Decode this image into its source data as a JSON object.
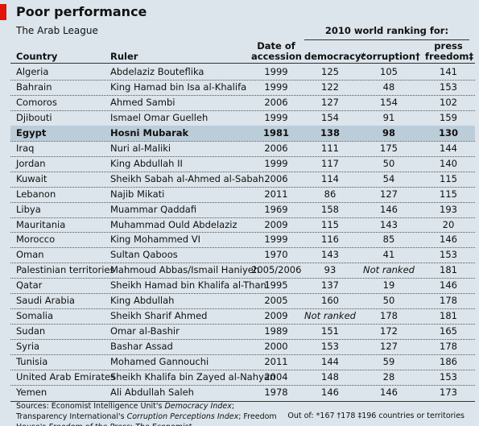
{
  "header": {
    "title": "Poor performance",
    "subtitle": "The Arab League",
    "group_label": "2010 world ranking for:"
  },
  "table": {
    "columns": [
      "Country",
      "Ruler",
      "Date of accession",
      "democracy*",
      "corruption†",
      "press freedom‡"
    ],
    "highlighted_row": 4,
    "rows": [
      [
        "Algeria",
        "Abdelaziz Bouteflika",
        "1999",
        "125",
        "105",
        "141"
      ],
      [
        "Bahrain",
        "King Hamad bin Isa al-Khalifa",
        "1999",
        "122",
        "48",
        "153"
      ],
      [
        "Comoros",
        "Ahmed Sambi",
        "2006",
        "127",
        "154",
        "102"
      ],
      [
        "Djibouti",
        "Ismael Omar Guelleh",
        "1999",
        "154",
        "91",
        "159"
      ],
      [
        "Egypt",
        "Hosni Mubarak",
        "1981",
        "138",
        "98",
        "130"
      ],
      [
        "Iraq",
        "Nuri al-Maliki",
        "2006",
        "111",
        "175",
        "144"
      ],
      [
        "Jordan",
        "King Abdullah II",
        "1999",
        "117",
        "50",
        "140"
      ],
      [
        "Kuwait",
        "Sheikh Sabah al-Ahmed al-Sabah",
        "2006",
        "114",
        "54",
        "115"
      ],
      [
        "Lebanon",
        "Najib Mikati",
        "2011",
        "86",
        "127",
        "115"
      ],
      [
        "Libya",
        "Muammar Qaddafi",
        "1969",
        "158",
        "146",
        "193"
      ],
      [
        "Mauritania",
        "Muhammad Ould Abdelaziz",
        "2009",
        "115",
        "143",
        "20"
      ],
      [
        "Morocco",
        "King Mohammed VI",
        "1999",
        "116",
        "85",
        "146"
      ],
      [
        "Oman",
        "Sultan Qaboos",
        "1970",
        "143",
        "41",
        "153"
      ],
      [
        "Palestinian territories",
        "Mahmoud Abbas/Ismail Haniyeh",
        "2005/2006",
        "93",
        "Not ranked",
        "181"
      ],
      [
        "Qatar",
        "Sheikh Hamad bin Khalifa al-Thani",
        "1995",
        "137",
        "19",
        "146"
      ],
      [
        "Saudi Arabia",
        "King Abdullah",
        "2005",
        "160",
        "50",
        "178"
      ],
      [
        "Somalia",
        "Sheikh Sharif Ahmed",
        "2009",
        "Not ranked",
        "178",
        "181"
      ],
      [
        "Sudan",
        "Omar al-Bashir",
        "1989",
        "151",
        "172",
        "165"
      ],
      [
        "Syria",
        "Bashar Assad",
        "2000",
        "153",
        "127",
        "178"
      ],
      [
        "Tunisia",
        "Mohamed Gannouchi",
        "2011",
        "144",
        "59",
        "186"
      ],
      [
        "United Arab Emirates",
        "Sheikh Khalifa bin Zayed al-Nahyan",
        "2004",
        "148",
        "28",
        "153"
      ],
      [
        "Yemen",
        "Ali Abdullah Saleh",
        "1978",
        "146",
        "146",
        "173"
      ]
    ]
  },
  "footer": {
    "sources": [
      {
        "text": "Sources: Economist Intelligence Unit's ",
        "italic": false
      },
      {
        "text": "Democracy Index",
        "italic": true
      },
      {
        "text": "; Transparency International's ",
        "italic": false
      },
      {
        "text": "Corruption Perceptions Index",
        "italic": true
      },
      {
        "text": "; Freedom House's ",
        "italic": false
      },
      {
        "text": "Freedom of the Press",
        "italic": true
      },
      {
        "text": "; ",
        "italic": false
      },
      {
        "text": "The Economist",
        "italic": true
      }
    ],
    "note": "Out of: *167 †178 ‡196 countries or territories"
  }
}
